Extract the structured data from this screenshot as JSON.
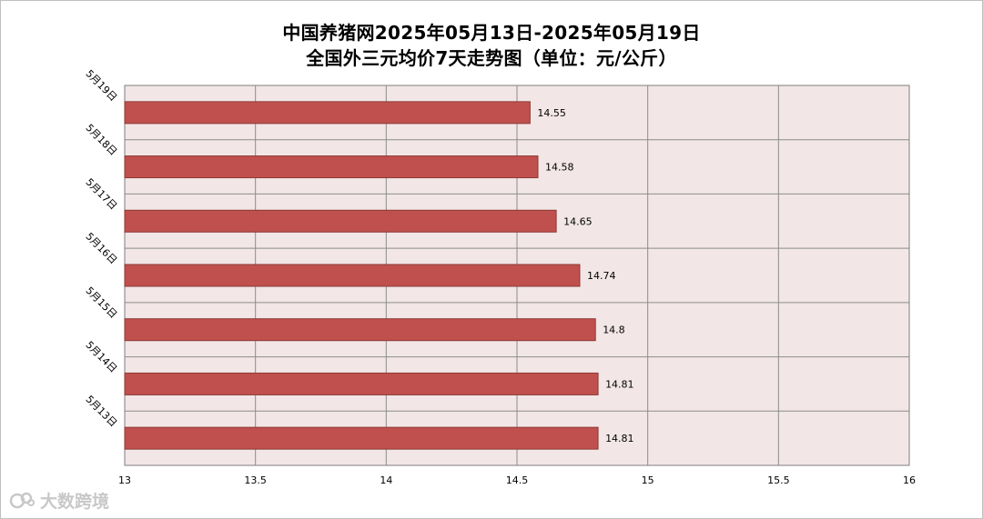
{
  "title_line1": "中国养猪网2025年05月13日-2025年05月19日",
  "title_line2": "全国外三元均价7天走势图（单位：元/公斤）",
  "watermark_text": "大数跨境",
  "colors": {
    "bar_fill": "#c0504d",
    "bar_stroke": "#8c3836",
    "plot_bg": "#f2e6e6",
    "grid": "#8c8c8c"
  },
  "chart_data": {
    "type": "bar",
    "orientation": "horizontal",
    "categories": [
      "5月19日",
      "5月18日",
      "5月17日",
      "5月16日",
      "5月15日",
      "5月14日",
      "5月13日"
    ],
    "values": [
      14.55,
      14.58,
      14.65,
      14.74,
      14.8,
      14.81,
      14.81
    ],
    "value_labels": [
      "14.55",
      "14.58",
      "14.65",
      "14.74",
      "14.8",
      "14.81",
      "14.81"
    ],
    "xlim": [
      13,
      16
    ],
    "xticks": [
      13,
      13.5,
      14,
      14.5,
      15,
      15.5,
      16
    ],
    "xtick_labels": [
      "13",
      "13.5",
      "14",
      "14.5",
      "15",
      "15.5",
      "16"
    ],
    "grid": true,
    "legend": "none"
  }
}
